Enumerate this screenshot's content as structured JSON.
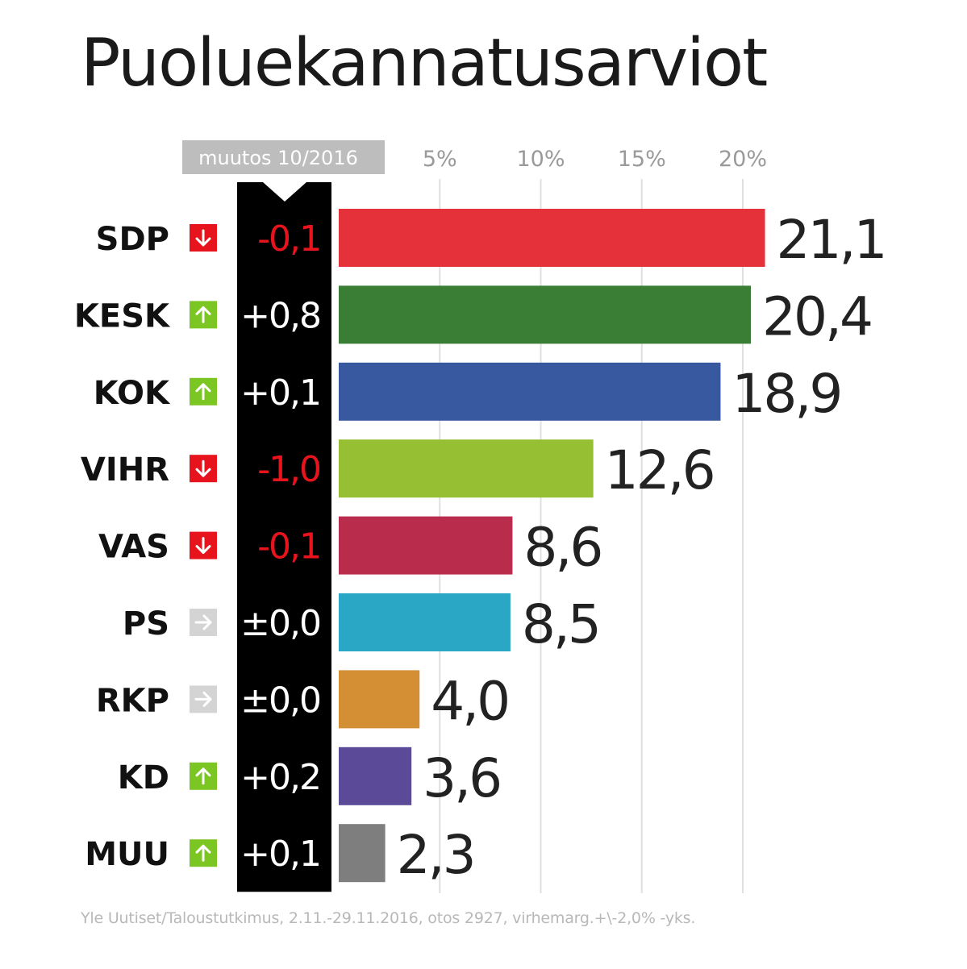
{
  "title": "Puoluekannatusarviot",
  "source": "Yle Uutiset/Taloustutkimus, 2.11.-29.11.2016, otos 2927, virhemarg.+\\-2,0% -yks.",
  "change_header": "muutos 10/2016",
  "colors": {
    "down": "#e8141d",
    "up": "#7bc623",
    "same": "#d4d4d4",
    "change_column": "#000000",
    "gridline": "#e0e0e0",
    "header_box": "#bdbdbd"
  },
  "chart_data": {
    "type": "bar",
    "orientation": "horizontal",
    "title": "Puoluekannatusarviot",
    "xlim": [
      0,
      22
    ],
    "x_ticks": [
      {
        "value": 5,
        "label": "5%"
      },
      {
        "value": 10,
        "label": "10%"
      },
      {
        "value": 15,
        "label": "15%"
      },
      {
        "value": 20,
        "label": "20%"
      }
    ],
    "grid": true,
    "rows": [
      {
        "party": "SDP",
        "value": 21.1,
        "label": "21,1",
        "change": "-0,1",
        "trend": "down",
        "color": "#e4313a"
      },
      {
        "party": "KESK",
        "value": 20.4,
        "label": "20,4",
        "change": "+0,8",
        "trend": "up",
        "color": "#3a7d35"
      },
      {
        "party": "KOK",
        "value": 18.9,
        "label": "18,9",
        "change": "+0,1",
        "trend": "up",
        "color": "#3858a0"
      },
      {
        "party": "VIHR",
        "value": 12.6,
        "label": "12,6",
        "change": "-1,0",
        "trend": "down",
        "color": "#96bf34"
      },
      {
        "party": "VAS",
        "value": 8.6,
        "label": "8,6",
        "change": "-0,1",
        "trend": "down",
        "color": "#b92c4b"
      },
      {
        "party": "PS",
        "value": 8.5,
        "label": "8,5",
        "change": "±0,0",
        "trend": "same",
        "color": "#2aa7c4"
      },
      {
        "party": "RKP",
        "value": 4.0,
        "label": "4,0",
        "change": "±0,0",
        "trend": "same",
        "color": "#d48e34"
      },
      {
        "party": "KD",
        "value": 3.6,
        "label": "3,6",
        "change": "+0,2",
        "trend": "up",
        "color": "#5a4a98"
      },
      {
        "party": "MUU",
        "value": 2.3,
        "label": "2,3",
        "change": "+0,1",
        "trend": "up",
        "color": "#7e7e7e"
      }
    ]
  }
}
